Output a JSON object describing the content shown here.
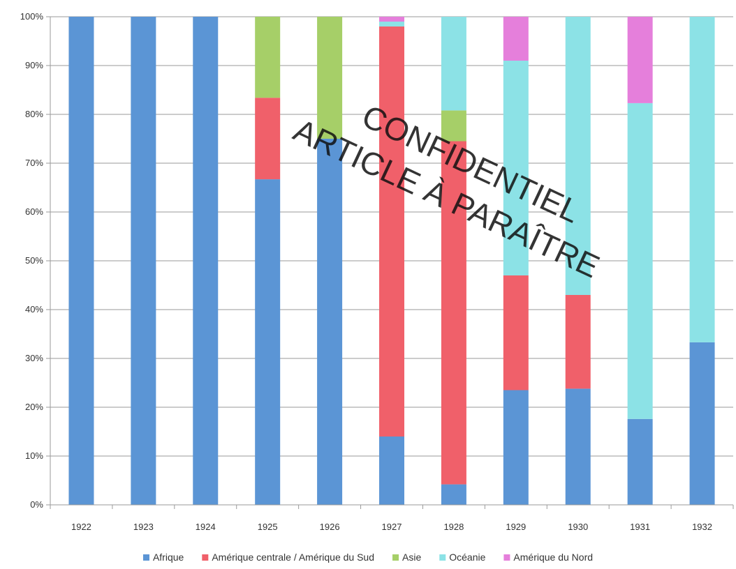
{
  "chart_data": {
    "type": "bar",
    "stacked": true,
    "percent": true,
    "categories": [
      "1922",
      "1923",
      "1924",
      "1925",
      "1926",
      "1927",
      "1928",
      "1929",
      "1930",
      "1931",
      "1932"
    ],
    "series": [
      {
        "name": "Afrique",
        "color": "#5b95d5",
        "values": [
          100,
          100,
          100,
          66.7,
          75,
          14,
          4.2,
          23.5,
          23.8,
          17.6,
          33.3
        ]
      },
      {
        "name": "Amérique centrale / Amérique du Sud",
        "color": "#f0606a",
        "values": [
          0,
          0,
          0,
          16.7,
          0,
          84,
          70.3,
          23.5,
          19.2,
          0,
          0
        ]
      },
      {
        "name": "Asie",
        "color": "#a6cf68",
        "values": [
          0,
          0,
          0,
          16.6,
          25,
          0,
          6.3,
          0,
          0,
          0,
          0
        ]
      },
      {
        "name": "Océanie",
        "color": "#8ce2e6",
        "values": [
          0,
          0,
          0,
          0,
          0,
          1,
          19.2,
          44,
          57,
          64.7,
          66.7
        ]
      },
      {
        "name": "Amérique du Nord",
        "color": "#e57fdb",
        "values": [
          0,
          0,
          0,
          0,
          0,
          1,
          0,
          9,
          0,
          17.7,
          0
        ]
      }
    ],
    "ylim": [
      0,
      100
    ],
    "yticks": [
      "0%",
      "10%",
      "20%",
      "30%",
      "40%",
      "50%",
      "60%",
      "70%",
      "80%",
      "90%",
      "100%"
    ],
    "grid": true,
    "legend_position": "bottom"
  },
  "watermark": {
    "line1": "CONFIDENTIEL",
    "line2": "ARTICLE À PARAÎTRE"
  }
}
